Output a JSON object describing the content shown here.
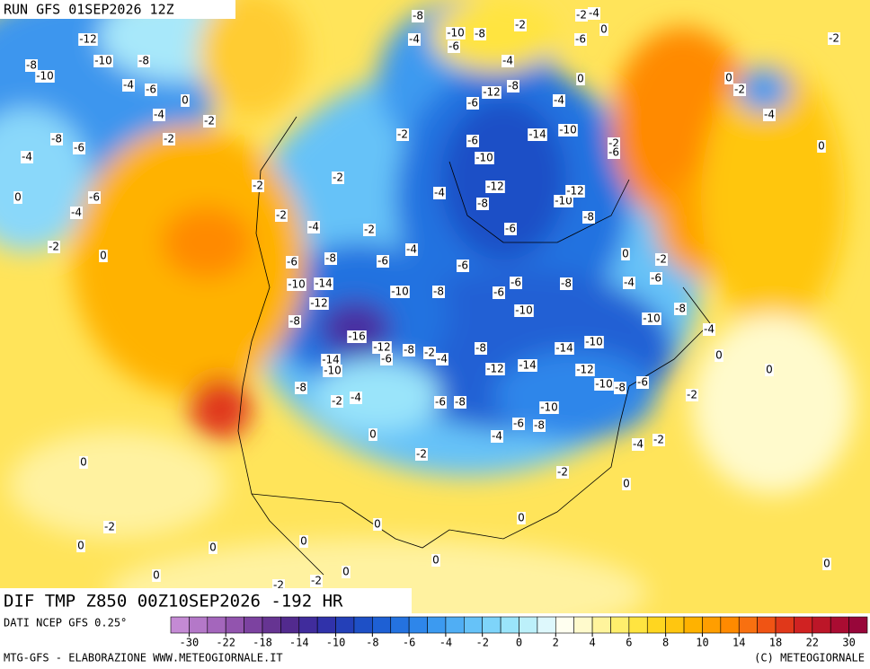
{
  "header": {
    "run": "RUN GFS 01SEP2026 12Z"
  },
  "map": {
    "title": "DIF TMP Z850 00Z10SEP2026 -192 HR",
    "contour_labels": [
      -12,
      -8,
      -10,
      -10,
      -8,
      -4,
      -6,
      -4,
      -2,
      -2,
      0,
      -8,
      -6,
      -4,
      0,
      -6,
      -4,
      -2,
      0,
      -2,
      -2,
      -2,
      -4,
      -2,
      -6,
      -8,
      -4,
      -6,
      -10,
      -14,
      -12,
      -10,
      -8,
      -6,
      -8,
      -16,
      -12,
      -8,
      -6,
      -2,
      -4,
      -14,
      -10,
      -8,
      -2,
      -4,
      -6,
      -8,
      -8,
      -12,
      -14,
      -14,
      -12,
      -10,
      -10,
      -8,
      -6,
      -10,
      -6,
      -8,
      -4,
      -2,
      -2,
      -2,
      -4,
      0,
      0,
      -2,
      0,
      0,
      0,
      -2,
      0,
      0,
      0,
      0,
      0,
      0,
      -2,
      0,
      0,
      -4,
      -8,
      -10,
      -6,
      -4,
      -2,
      0,
      -8,
      -6,
      -6,
      -10,
      -6,
      -8,
      -10,
      -12,
      -12,
      -8,
      -10,
      -6,
      -14,
      -10,
      -2,
      -6,
      -4,
      -2,
      -6,
      -12,
      -8,
      -4,
      0,
      -4,
      -6,
      -10,
      -8,
      -4,
      -8,
      -2,
      -2,
      -4,
      -6,
      0,
      -2,
      0,
      -2,
      -4,
      0,
      0,
      -2
    ]
  },
  "colorbar": {
    "source": "DATI NCEP GFS 0.25°",
    "ticks": [
      -30,
      -22,
      -18,
      -14,
      -10,
      -8,
      -6,
      -4,
      -2,
      0,
      2,
      4,
      6,
      8,
      10,
      14,
      18,
      22,
      30
    ],
    "colors": [
      "#c48ad4",
      "#b478c8",
      "#a466bc",
      "#9254ae",
      "#7c42a0",
      "#663492",
      "#522a8e",
      "#402c9c",
      "#3032aa",
      "#2440b8",
      "#1e50c6",
      "#1e60d4",
      "#2472e0",
      "#2e86ea",
      "#3c9af0",
      "#50aef4",
      "#66c2f8",
      "#7ed4fa",
      "#9ae4fa",
      "#bcf0fa",
      "#def8fc",
      "#fffff0",
      "#fffacc",
      "#fff49c",
      "#ffee6c",
      "#ffe440",
      "#ffd620",
      "#ffc610",
      "#ffb200",
      "#ff9e00",
      "#ff8a00",
      "#f87010",
      "#f05414",
      "#e0381a",
      "#d02222",
      "#bc1628",
      "#aa0c32",
      "#98063a"
    ]
  },
  "footer": {
    "credit": "MTG-GFS - ELABORAZIONE WWW.METEOGIORNALE.IT",
    "copyright": "(C) METEOGIORNALE"
  }
}
